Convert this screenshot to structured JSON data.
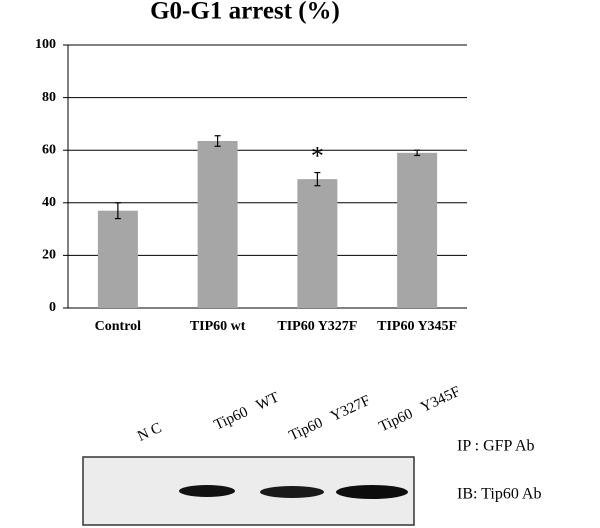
{
  "chart_data": {
    "type": "bar",
    "title": "G0-G1 arrest (%)",
    "categories": [
      "Control",
      "TIP60 wt",
      "TIP60 Y327F",
      "TIP60 Y345F"
    ],
    "values": [
      37,
      63.5,
      49,
      59
    ],
    "errors": [
      3,
      2,
      2.5,
      1
    ],
    "color": "#a6a6a6",
    "ylim": [
      0,
      100
    ],
    "yticks": [
      0,
      20,
      40,
      60,
      80,
      100
    ],
    "grid": true,
    "annotation": {
      "text": "*",
      "category": "TIP60 Y327F"
    }
  },
  "blot": {
    "lanes": [
      "N C",
      "Tip60   WT",
      "Tip60   Y327F",
      "Tip60   Y345F"
    ],
    "labels": [
      "IP : GFP Ab",
      "IB: Tip60 Ab"
    ]
  }
}
